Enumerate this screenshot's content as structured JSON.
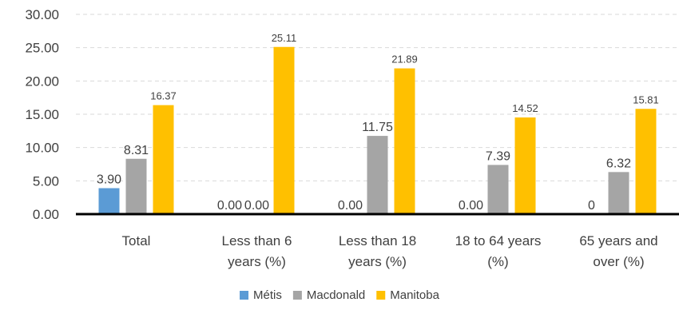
{
  "chart_data": {
    "type": "bar",
    "categories": [
      [
        "Total"
      ],
      [
        "Less than 6",
        "years (%)"
      ],
      [
        "Less than 18",
        "years (%)"
      ],
      [
        "18 to 64 years",
        "(%)"
      ],
      [
        "65 years and",
        "over (%)"
      ]
    ],
    "series": [
      {
        "name": "Métis",
        "color": "#5b9bd5",
        "values": [
          3.9,
          0.0,
          0.0,
          0.0,
          0
        ],
        "labels": [
          "3.90",
          "0.00",
          "0.00",
          "0.00",
          "0"
        ]
      },
      {
        "name": "Macdonald",
        "color": "#a5a5a5",
        "values": [
          8.31,
          0.0,
          11.75,
          7.39,
          6.32
        ],
        "labels": [
          "8.31",
          "0.00",
          "11.75",
          "7.39",
          "6.32"
        ]
      },
      {
        "name": "Manitoba",
        "color": "#ffc000",
        "values": [
          16.37,
          25.11,
          21.89,
          14.52,
          15.81
        ],
        "labels": [
          "16.37",
          "25.11",
          "21.89",
          "14.52",
          "15.81"
        ]
      }
    ],
    "ylim": [
      0,
      30
    ],
    "yticks": [
      "0.00",
      "5.00",
      "10.00",
      "15.00",
      "20.00",
      "25.00",
      "30.00"
    ],
    "grid": true,
    "legend_position": "bottom"
  }
}
